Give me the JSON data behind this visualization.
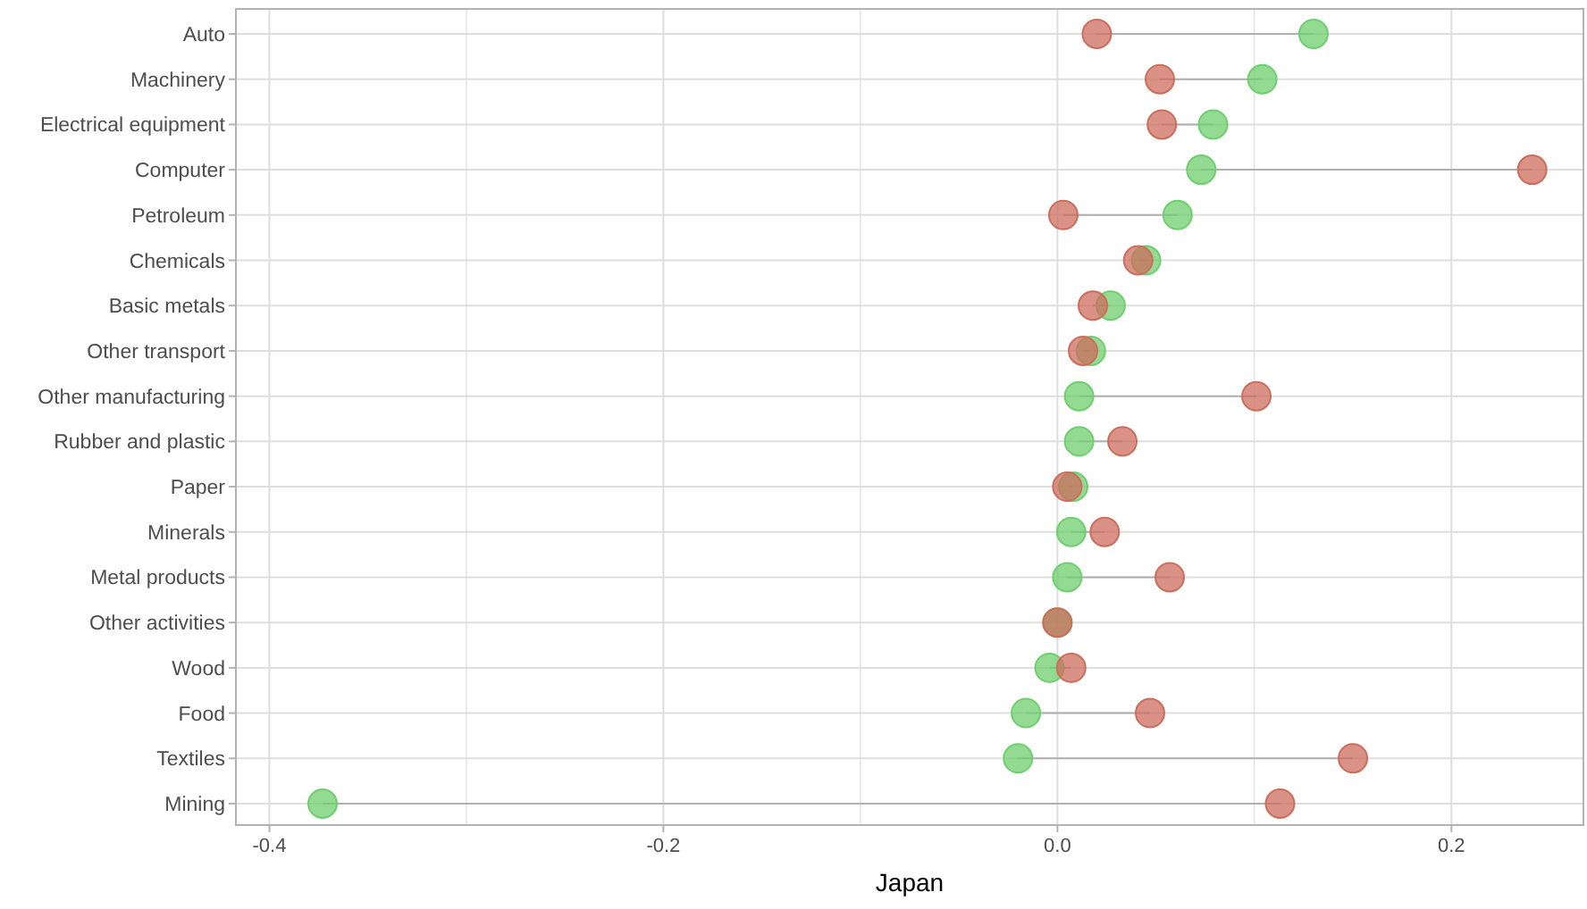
{
  "chart_data": {
    "type": "scatter",
    "xlabel": "Japan",
    "orientation": "horizontal",
    "categories": [
      "Auto",
      "Machinery",
      "Electrical equipment",
      "Computer",
      "Petroleum",
      "Chemicals",
      "Basic metals",
      "Other transport",
      "Other manufacturing",
      "Rubber and plastic",
      "Paper",
      "Minerals",
      "Metal products",
      "Other activities",
      "Wood",
      "Food",
      "Textiles",
      "Mining"
    ],
    "series": [
      {
        "color": "#6fcf6f",
        "values": [
          0.13,
          0.104,
          0.079,
          0.073,
          0.061,
          0.045,
          0.027,
          0.017,
          0.011,
          0.011,
          0.008,
          0.007,
          0.005,
          0,
          -0.004,
          -0.016,
          -0.02,
          -0.373
        ]
      },
      {
        "color": "#cc6e5c",
        "values": [
          0.02,
          0.052,
          0.053,
          0.241,
          0.003,
          0.041,
          0.018,
          0.013,
          0.101,
          0.033,
          0.005,
          0.024,
          0.057,
          0,
          0.007,
          0.047,
          0.15,
          0.113
        ]
      }
    ],
    "xlim": [
      -0.417,
      0.267
    ],
    "xticks": [
      {
        "value": -0.4,
        "label": "-0.4"
      },
      {
        "value": -0.3,
        "label": null
      },
      {
        "value": -0.2,
        "label": "-0.2"
      },
      {
        "value": -0.1,
        "label": null
      },
      {
        "value": 0,
        "label": "0.0"
      },
      {
        "value": 0.1,
        "label": null
      },
      {
        "value": 0.2,
        "label": "0.2"
      }
    ],
    "grid": true,
    "marker": "circle"
  }
}
